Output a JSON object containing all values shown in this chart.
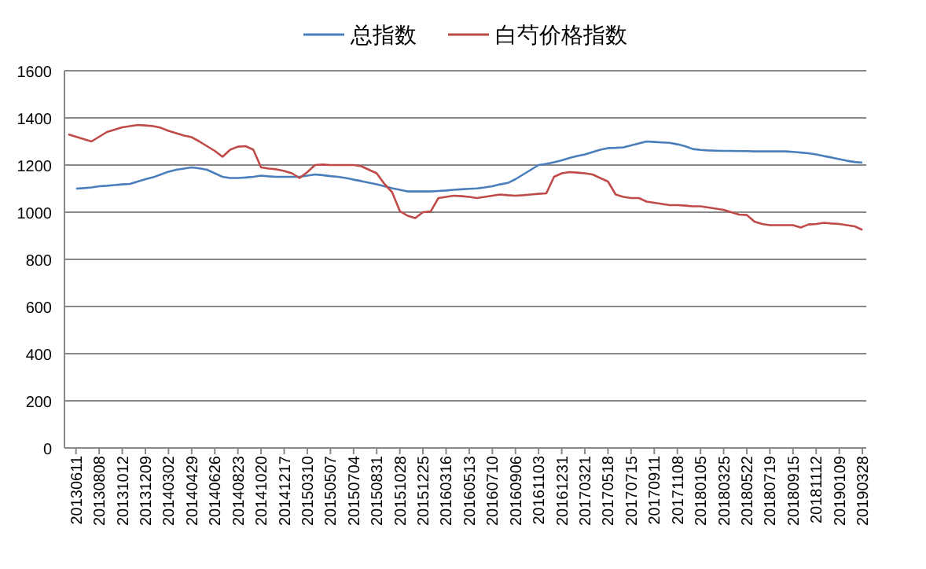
{
  "chart_data": {
    "type": "line",
    "legend": "top",
    "grid": "y",
    "ylim": [
      0,
      1600
    ],
    "yticks": [
      0,
      200,
      400,
      600,
      800,
      1000,
      1200,
      1400,
      1600
    ],
    "categories": [
      null,
      "20130611",
      null,
      null,
      "20130808",
      null,
      null,
      "20131012",
      null,
      null,
      "20131209",
      null,
      null,
      "20140302",
      null,
      null,
      "20140429",
      null,
      null,
      "20140626",
      null,
      null,
      "20140823",
      null,
      null,
      "20141020",
      null,
      null,
      "20141217",
      null,
      null,
      "20150310",
      null,
      null,
      "20150507",
      null,
      null,
      "20150704",
      null,
      null,
      "20150831",
      null,
      null,
      "20151028",
      null,
      null,
      "20151225",
      null,
      null,
      "20160316",
      null,
      null,
      "20160513",
      null,
      null,
      "20160710",
      null,
      null,
      "20160906",
      null,
      null,
      "20161103",
      null,
      null,
      "20161231",
      null,
      null,
      "20170321",
      null,
      null,
      "20170518",
      null,
      null,
      "20170715",
      null,
      null,
      "20170911",
      null,
      null,
      "20171108",
      null,
      null,
      "20180105",
      null,
      null,
      "20180325",
      null,
      null,
      "20180522",
      null,
      null,
      "20180719",
      null,
      null,
      "20180915",
      null,
      null,
      "20181112",
      null,
      null,
      "20190109",
      null,
      null,
      "20190328"
    ],
    "series": [
      {
        "name": "总指数",
        "color": "#4a7ebb",
        "values": [
          null,
          1100,
          1102,
          1105,
          1110,
          1112,
          1115,
          1118,
          1120,
          1130,
          1140,
          1148,
          1160,
          1172,
          1180,
          1185,
          1190,
          1186,
          1180,
          1165,
          1150,
          1145,
          1145,
          1147,
          1150,
          1155,
          1152,
          1150,
          1150,
          1150,
          1150,
          1155,
          1160,
          1157,
          1153,
          1150,
          1145,
          1138,
          1132,
          1125,
          1118,
          1110,
          1102,
          1095,
          1088,
          1088,
          1088,
          1088,
          1090,
          1092,
          1095,
          1097,
          1099,
          1101,
          1105,
          1110,
          1118,
          1124,
          1140,
          1160,
          1180,
          1200,
          1205,
          1212,
          1220,
          1230,
          1238,
          1245,
          1255,
          1265,
          1272,
          1273,
          1275,
          1283,
          1292,
          1300,
          1298,
          1296,
          1294,
          1288,
          1280,
          1268,
          1264,
          1262,
          1261,
          1260,
          1260,
          1259,
          1259,
          1258,
          1258,
          1258,
          1258,
          1258,
          1256,
          1253,
          1250,
          1245,
          1238,
          1232,
          1225,
          1218,
          1213,
          1210
        ]
      },
      {
        "name": "白芍价格指数",
        "color": "#be4b48",
        "values": [
          1330,
          1320,
          1310,
          1300,
          1320,
          1340,
          1350,
          1360,
          1365,
          1370,
          1368,
          1365,
          1358,
          1345,
          1335,
          1325,
          1318,
          1300,
          1280,
          1260,
          1235,
          1265,
          1278,
          1280,
          1265,
          1190,
          1185,
          1182,
          1175,
          1165,
          1145,
          1170,
          1200,
          1202,
          1200,
          1200,
          1200,
          1200,
          1195,
          1180,
          1165,
          1120,
          1085,
          1005,
          985,
          975,
          1000,
          1003,
          1060,
          1065,
          1070,
          1068,
          1065,
          1060,
          1065,
          1070,
          1075,
          1072,
          1070,
          1072,
          1075,
          1078,
          1080,
          1150,
          1165,
          1170,
          1168,
          1165,
          1160,
          1145,
          1130,
          1075,
          1065,
          1060,
          1060,
          1045,
          1040,
          1035,
          1030,
          1030,
          1028,
          1025,
          1025,
          1020,
          1015,
          1010,
          1000,
          990,
          988,
          960,
          950,
          945,
          945,
          945,
          945,
          935,
          948,
          950,
          955,
          952,
          950,
          945,
          940,
          925
        ]
      }
    ]
  }
}
